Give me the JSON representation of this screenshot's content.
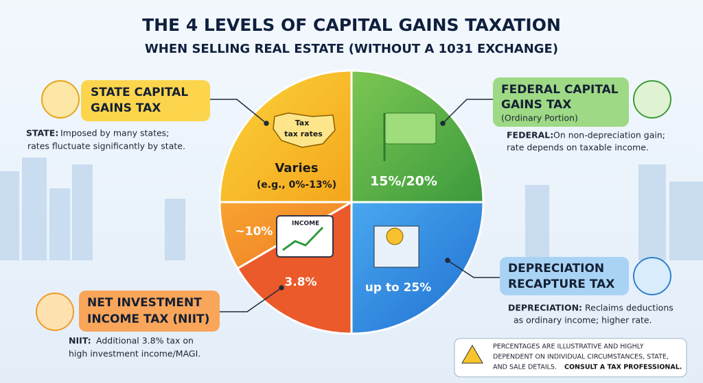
{
  "header": {
    "title": "THE 4 LEVELS OF CAPITAL GAINS TAXATION",
    "subtitle": "WHEN SELLING REAL ESTATE (WITHOUT A 1031 EXCHANGE)"
  },
  "callouts": {
    "state": {
      "title_lines": [
        "STATE CAPITAL",
        "GAINS TAX"
      ],
      "label": "STATE:",
      "desc_lines": [
        "Imposed by many states;",
        "rates fluctuate significantly by state."
      ]
    },
    "federal": {
      "title_lines": [
        "FEDERAL CAPITAL",
        "GAINS TAX"
      ],
      "note": "(Ordinary Portion)",
      "label": "FEDERAL:",
      "desc_lines": [
        "On non-depreciation gain;",
        "rate depends on taxable income."
      ]
    },
    "niit": {
      "title_lines": [
        "NET INVESTMENT",
        "INCOME TAX (NIIT)"
      ],
      "label": "NIIT:",
      "desc_lines": [
        "Additional 3.8% tax on",
        "high investment income/MAGI."
      ]
    },
    "depreciation": {
      "title_lines": [
        "DEPRECIATION",
        "RECAPTURE TAX"
      ],
      "label": "DEPRECIATION:",
      "desc_lines": [
        "Reclaims deductions",
        "as ordinary income; higher rate."
      ]
    }
  },
  "pie": {
    "state_map_lines": [
      "Tax",
      "tax rates"
    ],
    "state_rate": "Varies",
    "state_example": "(e.g., 0%-13%)",
    "federal_rate": "15%/20%",
    "niit_left": "~10%",
    "monitor_label": "INCOME",
    "niit_rate": "3.8%",
    "depreciation_rate": "up to 25%"
  },
  "disclaimer": {
    "lines": [
      "PERCENTAGES ARE ILLUSTRATIVE AND HIGHLY",
      "DEPENDENT ON INDIVIDUAL CIRCUMSTANCES, STATE,",
      "AND SALE DETAILS."
    ],
    "emphasis": "CONSULT A TAX PROFESSIONAL."
  }
}
